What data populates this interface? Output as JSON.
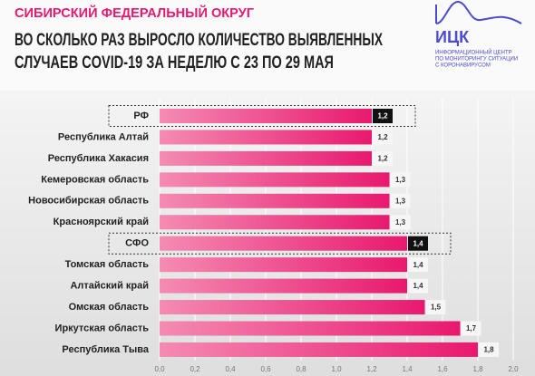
{
  "chart_data": {
    "type": "barh",
    "subtitle": "СИБИРСКИЙ ФЕДЕРАЛЬНЫЙ ОКРУГ",
    "title": [
      "ВО СКОЛЬКО РАЗ ВЫРОСЛО КОЛИЧЕСТВО ВЫЯВЛЕННЫХ",
      "СЛУЧАЕВ COVID-19 ЗА НЕДЕЛЮ С 23 ПО 29 МАЯ"
    ],
    "categories": [
      "РФ",
      "Республика Алтай",
      "Республика Хакасия",
      "Кемеровская область",
      "Новосибирская область",
      "Красноярский край",
      "СФО",
      "Томская область",
      "Алтайский край",
      "Омская область",
      "Иркутская область",
      "Республика Тыва"
    ],
    "values": [
      1.2,
      1.2,
      1.2,
      1.3,
      1.3,
      1.3,
      1.4,
      1.4,
      1.4,
      1.5,
      1.7,
      1.8
    ],
    "value_labels": [
      "1,2",
      "1,2",
      "1,2",
      "1,3",
      "1,3",
      "1,3",
      "1,4",
      "1,4",
      "1,4",
      "1,5",
      "1,7",
      "1,8"
    ],
    "highlight": [
      "РФ",
      "СФО"
    ],
    "color": "#e8196e",
    "xlim": [
      0,
      2
    ],
    "xticks": [
      {
        "value": 0,
        "label": "0,0"
      },
      {
        "value": 0.2,
        "label": "0,2"
      },
      {
        "value": 0.4,
        "label": "0,4"
      },
      {
        "value": 0.6,
        "label": "0,6"
      },
      {
        "value": 0.8,
        "label": "0,8"
      },
      {
        "value": 1,
        "label": "1,0"
      },
      {
        "value": 1.2,
        "label": "1,2"
      },
      {
        "value": 1.4,
        "label": "1,4"
      },
      {
        "value": 1.6,
        "label": "1,6"
      },
      {
        "value": 1.8,
        "label": "1,8"
      },
      {
        "value": 2,
        "label": "2,0"
      }
    ],
    "grid": true
  },
  "logo": {
    "name": "ИЦК",
    "lines": [
      "ИНФОРМАЦИОННЫЙ ЦЕНТР",
      "ПО МОНИТОРИНГУ СИТУАЦИИ",
      "С КОРОНАВИРУСОМ"
    ]
  }
}
